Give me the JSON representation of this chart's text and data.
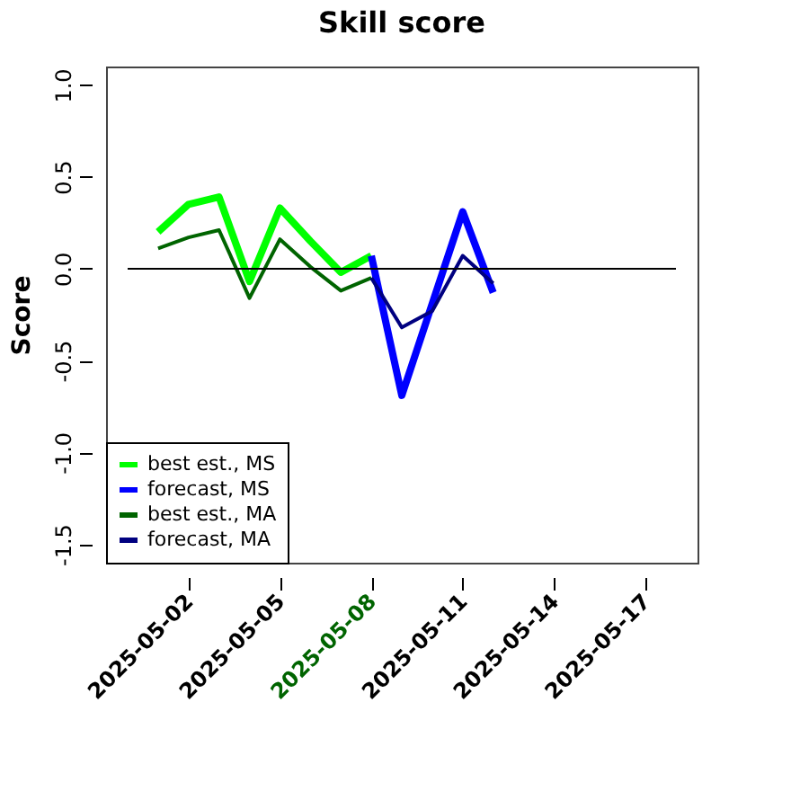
{
  "chart_data": {
    "type": "line",
    "title": "Skill score",
    "ylabel": "Score",
    "xlim": [
      "2025-04-29T07:00",
      "2025-05-18T17:00"
    ],
    "xticks": [
      "2025-05-02",
      "2025-05-05",
      "2025-05-08",
      "2025-05-11",
      "2025-05-14",
      "2025-05-17"
    ],
    "ylim": [
      -1.6,
      1.1
    ],
    "yticks": [
      {
        "value": -1.5,
        "label": "-1.5"
      },
      {
        "value": -1,
        "label": "-1.0"
      },
      {
        "value": -0.5,
        "label": "-0.5"
      },
      {
        "value": 0,
        "label": "0.0"
      },
      {
        "value": 0.5,
        "label": "0.5"
      },
      {
        "value": 1,
        "label": "1.0"
      }
    ],
    "grid": false,
    "legend": "bottom left",
    "marker": "none",
    "line_style": "solid",
    "series": [
      {
        "name": "best est., MS",
        "color": "#00ff00",
        "x": [
          "2025-05-01",
          "2025-05-02",
          "2025-05-03",
          "2025-05-04",
          "2025-05-05",
          "2025-05-06",
          "2025-05-07",
          "2025-05-08"
        ],
        "values": [
          0.2,
          0.35,
          0.39,
          -0.07,
          0.33,
          0.15,
          -0.02,
          0.07
        ]
      },
      {
        "name": "forecast, MS",
        "color": "#0000ff",
        "x": [
          "2025-05-08",
          "2025-05-09",
          "2025-05-10",
          "2025-05-11",
          "2025-05-12"
        ],
        "values": [
          0.07,
          -0.69,
          -0.19,
          0.31,
          -0.13
        ]
      },
      {
        "name": "best est., MA",
        "color": "#006400",
        "x": [
          "2025-05-01",
          "2025-05-02",
          "2025-05-03",
          "2025-05-04",
          "2025-05-05",
          "2025-05-06",
          "2025-05-07",
          "2025-05-08"
        ],
        "values": [
          0.11,
          0.17,
          0.21,
          -0.16,
          0.16,
          0.01,
          -0.12,
          -0.05
        ]
      },
      {
        "name": "forecast, MA",
        "color": "#000080",
        "x": [
          "2025-05-08",
          "2025-05-09",
          "2025-05-10",
          "2025-05-11",
          "2025-05-12"
        ],
        "values": [
          -0.05,
          -0.32,
          -0.23,
          0.07,
          -0.08
        ]
      },
      {
        "color": "#000000",
        "x": [
          "2025-04-30",
          "2025-05-18"
        ],
        "values": [
          0,
          0
        ]
      }
    ]
  }
}
